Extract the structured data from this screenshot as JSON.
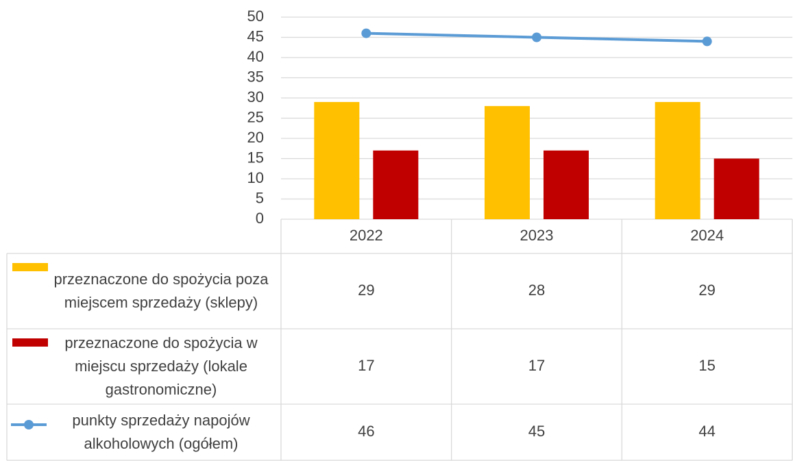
{
  "chart_data": {
    "type": "bar",
    "categories": [
      "2022",
      "2023",
      "2024"
    ],
    "series": [
      {
        "name": "przeznaczone do spożycia poza miejscem sprzedaży (sklepy)",
        "color": "#ffc000",
        "type": "bar",
        "values": [
          29,
          28,
          29
        ]
      },
      {
        "name": "przeznaczone do spożycia w miejscu sprzedaży (lokale gastronomiczne)",
        "color": "#c00000",
        "type": "bar",
        "values": [
          17,
          17,
          15
        ]
      },
      {
        "name": "punkty sprzedaży napojów alkoholowych (ogółem)",
        "color": "#5b9bd5",
        "type": "line",
        "values": [
          46,
          45,
          44
        ]
      }
    ],
    "ylim": [
      0,
      50
    ],
    "yticks": [
      0,
      5,
      10,
      15,
      20,
      25,
      30,
      35,
      40,
      45,
      50
    ],
    "grid": true,
    "data_table": true
  }
}
